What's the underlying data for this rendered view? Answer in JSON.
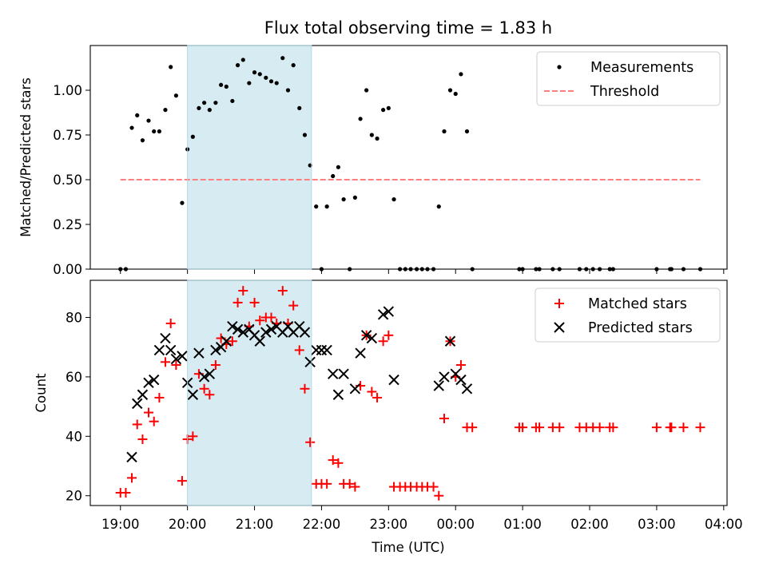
{
  "chart_data": [
    {
      "type": "scatter",
      "title": "Flux total observing time = 1.83 h",
      "xlabel": "",
      "ylabel": "Matched/Predicted stars",
      "ylim": [
        0,
        1.25
      ],
      "yticks": [
        "0.00",
        "0.25",
        "0.50",
        "0.75",
        "1.00"
      ],
      "xlim_hours": [
        18.55,
        28.05
      ],
      "legend": "top-right",
      "highlight_span_hours": [
        20.0,
        21.85
      ],
      "series": [
        {
          "name": "Measurements",
          "color": "#000000",
          "marker": "dot",
          "x_hours": [
            19.0,
            19.08,
            19.17,
            19.25,
            19.33,
            19.42,
            19.5,
            19.58,
            19.67,
            19.75,
            19.83,
            19.92,
            20.0,
            20.08,
            20.17,
            20.25,
            20.33,
            20.42,
            20.5,
            20.58,
            20.67,
            20.75,
            20.83,
            20.92,
            21.0,
            21.08,
            21.17,
            21.25,
            21.33,
            21.42,
            21.5,
            21.58,
            21.67,
            21.75,
            21.83,
            21.92,
            22.0,
            22.08,
            22.17,
            22.25,
            22.33,
            22.42,
            22.5,
            22.58,
            22.67,
            22.75,
            22.83,
            22.92,
            23.0,
            23.08,
            23.17,
            23.25,
            23.33,
            23.42,
            23.5,
            23.58,
            23.67,
            23.75,
            23.83,
            23.92,
            24.0,
            24.08,
            24.17,
            24.25,
            24.95,
            25.0,
            25.2,
            25.25,
            25.45,
            25.55,
            25.85,
            25.95,
            26.05,
            26.15,
            26.3,
            26.35,
            27.0,
            27.2,
            27.22,
            27.4,
            27.65
          ],
          "y": [
            0.0,
            0.0,
            0.79,
            0.86,
            0.72,
            0.83,
            0.77,
            0.77,
            0.89,
            1.13,
            0.97,
            0.37,
            0.67,
            0.74,
            0.9,
            0.93,
            0.89,
            0.93,
            1.03,
            1.02,
            0.94,
            1.14,
            1.17,
            1.04,
            1.1,
            1.09,
            1.07,
            1.05,
            1.04,
            1.18,
            1.0,
            1.14,
            0.9,
            0.75,
            0.58,
            0.35,
            0.0,
            0.35,
            0.52,
            0.57,
            0.39,
            0.0,
            0.4,
            0.84,
            1.0,
            0.75,
            0.73,
            0.89,
            0.9,
            0.39,
            0.0,
            0.0,
            0.0,
            0.0,
            0.0,
            0.0,
            0.0,
            0.35,
            0.77,
            1.0,
            0.98,
            1.09,
            0.77,
            0.0,
            0.0,
            0.0,
            0.0,
            0.0,
            0.0,
            0.0,
            0.0,
            0.0,
            0.0,
            0.0,
            0.0,
            0.0,
            0.0,
            0.0,
            0.0,
            0.0,
            0.0
          ]
        },
        {
          "name": "Threshold",
          "color": "#ff7f7f",
          "style": "dashed-line",
          "x_hours": [
            19.0,
            27.65
          ],
          "y": [
            0.5,
            0.5
          ]
        }
      ]
    },
    {
      "type": "scatter",
      "title": "",
      "xlabel": "Time (UTC)",
      "ylabel": "Count",
      "ylim": [
        16.7,
        92.5
      ],
      "yticks": [
        "20",
        "40",
        "60",
        "80"
      ],
      "xlim_hours": [
        18.55,
        28.05
      ],
      "xtick_hours": [
        19,
        20,
        21,
        22,
        23,
        24,
        25,
        26,
        27,
        28
      ],
      "xtick_labels": [
        "19:00",
        "20:00",
        "21:00",
        "22:00",
        "23:00",
        "00:00",
        "01:00",
        "02:00",
        "03:00",
        "04:00"
      ],
      "legend": "top-right",
      "highlight_span_hours": [
        20.0,
        21.85
      ],
      "series": [
        {
          "name": "Matched stars",
          "color": "#ff0000",
          "marker": "plus",
          "x_hours": [
            19.0,
            19.08,
            19.17,
            19.25,
            19.33,
            19.42,
            19.5,
            19.58,
            19.67,
            19.75,
            19.83,
            19.92,
            20.0,
            20.08,
            20.17,
            20.25,
            20.33,
            20.42,
            20.5,
            20.58,
            20.67,
            20.75,
            20.83,
            20.92,
            21.0,
            21.08,
            21.17,
            21.25,
            21.33,
            21.42,
            21.5,
            21.58,
            21.67,
            21.75,
            21.83,
            21.92,
            22.0,
            22.08,
            22.17,
            22.25,
            22.33,
            22.42,
            22.5,
            22.58,
            22.67,
            22.75,
            22.83,
            22.92,
            23.0,
            23.08,
            23.17,
            23.25,
            23.33,
            23.42,
            23.5,
            23.58,
            23.67,
            23.75,
            23.83,
            23.92,
            24.0,
            24.08,
            24.17,
            24.25,
            24.95,
            25.0,
            25.2,
            25.25,
            25.45,
            25.55,
            25.85,
            25.95,
            26.05,
            26.15,
            26.3,
            26.35,
            27.0,
            27.2,
            27.22,
            27.4,
            27.65
          ],
          "y": [
            21,
            21,
            26,
            44,
            39,
            48,
            45,
            53,
            65,
            78,
            64,
            25,
            39,
            40,
            61,
            56,
            54,
            64,
            73,
            71,
            72,
            85,
            89,
            77,
            85,
            79,
            80,
            80,
            78,
            89,
            78,
            84,
            69,
            56,
            38,
            24,
            24,
            24,
            32,
            31,
            24,
            24,
            23,
            57,
            74,
            55,
            53,
            72,
            74,
            23,
            23,
            23,
            23,
            23,
            23,
            23,
            23,
            20,
            46,
            72,
            60,
            64,
            43,
            43,
            43,
            43,
            43,
            43,
            43,
            43,
            43,
            43,
            43,
            43,
            43,
            43,
            43,
            43,
            43,
            43,
            43
          ]
        },
        {
          "name": "Predicted stars",
          "color": "#000000",
          "marker": "x",
          "x_hours": [
            19.17,
            19.25,
            19.33,
            19.42,
            19.5,
            19.58,
            19.67,
            19.75,
            19.83,
            19.92,
            20.0,
            20.08,
            20.17,
            20.25,
            20.33,
            20.42,
            20.5,
            20.58,
            20.67,
            20.75,
            20.83,
            20.92,
            21.0,
            21.08,
            21.17,
            21.25,
            21.33,
            21.42,
            21.5,
            21.58,
            21.67,
            21.75,
            21.83,
            21.92,
            22.0,
            22.08,
            22.17,
            22.25,
            22.33,
            22.5,
            22.58,
            22.67,
            22.75,
            22.92,
            23.0,
            23.08,
            23.75,
            23.83,
            23.92,
            24.0,
            24.08,
            24.17
          ],
          "y": [
            33,
            51,
            54,
            58,
            59,
            69,
            73,
            69,
            66,
            67,
            58,
            54,
            68,
            60,
            61,
            69,
            70,
            72,
            77,
            76,
            75,
            76,
            74,
            72,
            75,
            76,
            77,
            75,
            77,
            75,
            77,
            75,
            65,
            69,
            69,
            69,
            61,
            54,
            61,
            56,
            68,
            74,
            73,
            81,
            82,
            59,
            57,
            60,
            72,
            61,
            59,
            56
          ]
        }
      ]
    }
  ]
}
